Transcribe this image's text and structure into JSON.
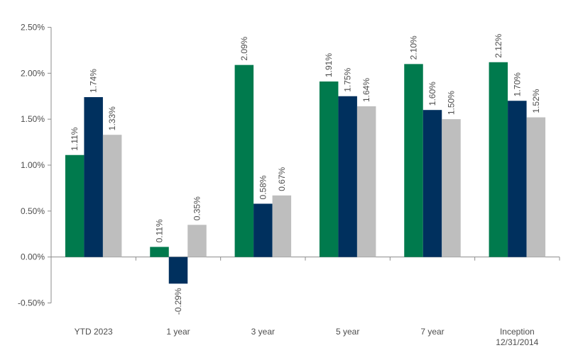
{
  "chart_data": {
    "type": "bar",
    "title": "",
    "xlabel": "",
    "ylabel": "",
    "ylim": [
      -0.5,
      2.5
    ],
    "yticks": [
      2.5,
      2.0,
      1.5,
      1.0,
      0.5,
      0.0,
      -0.5
    ],
    "ytick_labels": [
      "2.50%",
      "2.00%",
      "1.50%",
      "1.00%",
      "0.50%",
      "0.00%",
      "-0.50%"
    ],
    "grid": false,
    "legend": "none",
    "categories": [
      [
        "YTD 2023"
      ],
      [
        "1 year"
      ],
      [
        "3 year"
      ],
      [
        "5 year"
      ],
      [
        "7 year"
      ],
      [
        "Inception",
        "12/31/2014"
      ]
    ],
    "series": [
      {
        "color": "#007a4d",
        "values": [
          1.11,
          0.11,
          2.09,
          1.91,
          2.1,
          2.12
        ],
        "labels": [
          "1.11%",
          "0.11%",
          "2.09%",
          "1.91%",
          "2.10%",
          "2.12%"
        ]
      },
      {
        "color": "#00305e",
        "values": [
          1.74,
          -0.29,
          0.58,
          1.75,
          1.6,
          1.7
        ],
        "labels": [
          "1.74%",
          "-0.29%",
          "0.58%",
          "1.75%",
          "1.60%",
          "1.70%"
        ]
      },
      {
        "color": "#bebebe",
        "values": [
          1.33,
          0.35,
          0.67,
          1.64,
          1.5,
          1.52
        ],
        "labels": [
          "1.33%",
          "0.35%",
          "0.67%",
          "1.64%",
          "1.50%",
          "1.52%"
        ]
      }
    ]
  }
}
